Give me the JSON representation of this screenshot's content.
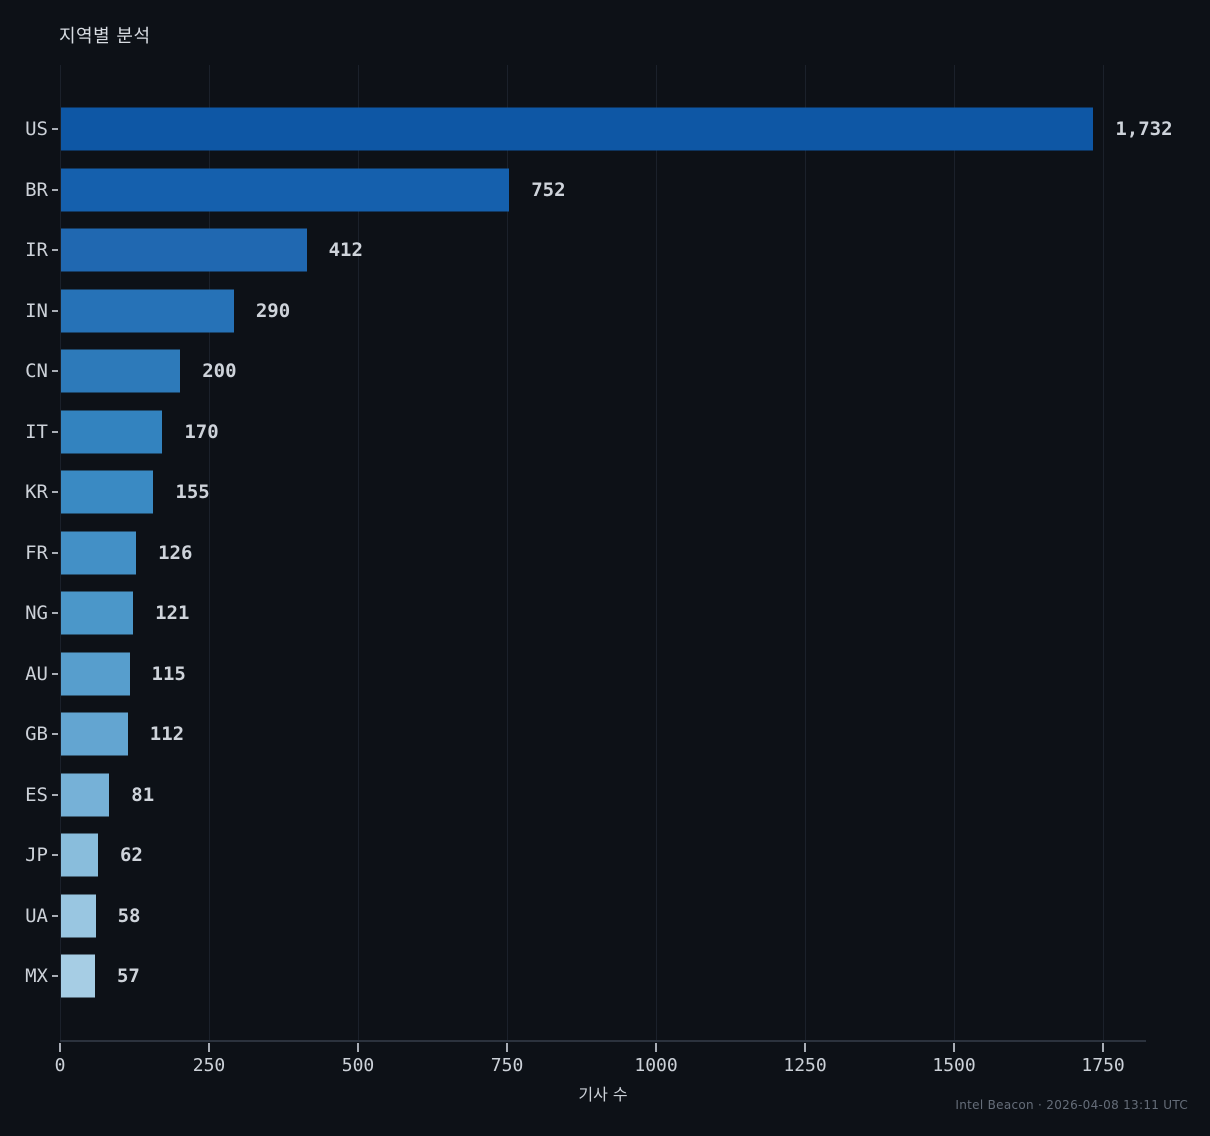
{
  "title": "지역별 분석",
  "footer": {
    "caption": "Intel Beacon · 2026-04-08 13:11 UTC"
  },
  "chart_data": {
    "type": "bar",
    "orientation": "horizontal",
    "title": "지역별 분석",
    "xlabel": "기사 수",
    "ylabel": "",
    "categories": [
      "US",
      "BR",
      "IR",
      "IN",
      "CN",
      "IT",
      "KR",
      "FR",
      "NG",
      "AU",
      "GB",
      "ES",
      "JP",
      "UA",
      "MX"
    ],
    "values": [
      1732,
      752,
      412,
      290,
      200,
      170,
      155,
      126,
      121,
      115,
      112,
      81,
      62,
      58,
      57
    ],
    "value_labels": [
      "1,732",
      "752",
      "412",
      "290",
      "200",
      "170",
      "155",
      "126",
      "121",
      "115",
      "112",
      "81",
      "62",
      "58",
      "57"
    ],
    "bar_colors": [
      "#0e57a5",
      "#1560ad",
      "#2068b1",
      "#2672b7",
      "#2d7aba",
      "#3383bf",
      "#3a8ac3",
      "#4390c6",
      "#4b97c9",
      "#579ecd",
      "#63a5d1",
      "#76b1d7",
      "#89bddc",
      "#99c6e1",
      "#a6cde4"
    ],
    "xlim": [
      0,
      1822
    ],
    "xticks": [
      0,
      250,
      500,
      750,
      1000,
      1250,
      1500,
      1750
    ],
    "grid": "vertical-gridlines",
    "legend": "none"
  },
  "colors": {
    "background": "#0d1117",
    "gridline": "#1b212b",
    "axis_spine": "#2b323d",
    "tick_mark": "#a9aeb6",
    "tick_label": "#ccd1d8",
    "title_text": "#d8dce2",
    "value_label": "#ced3da",
    "footer_text": "#656d79"
  }
}
